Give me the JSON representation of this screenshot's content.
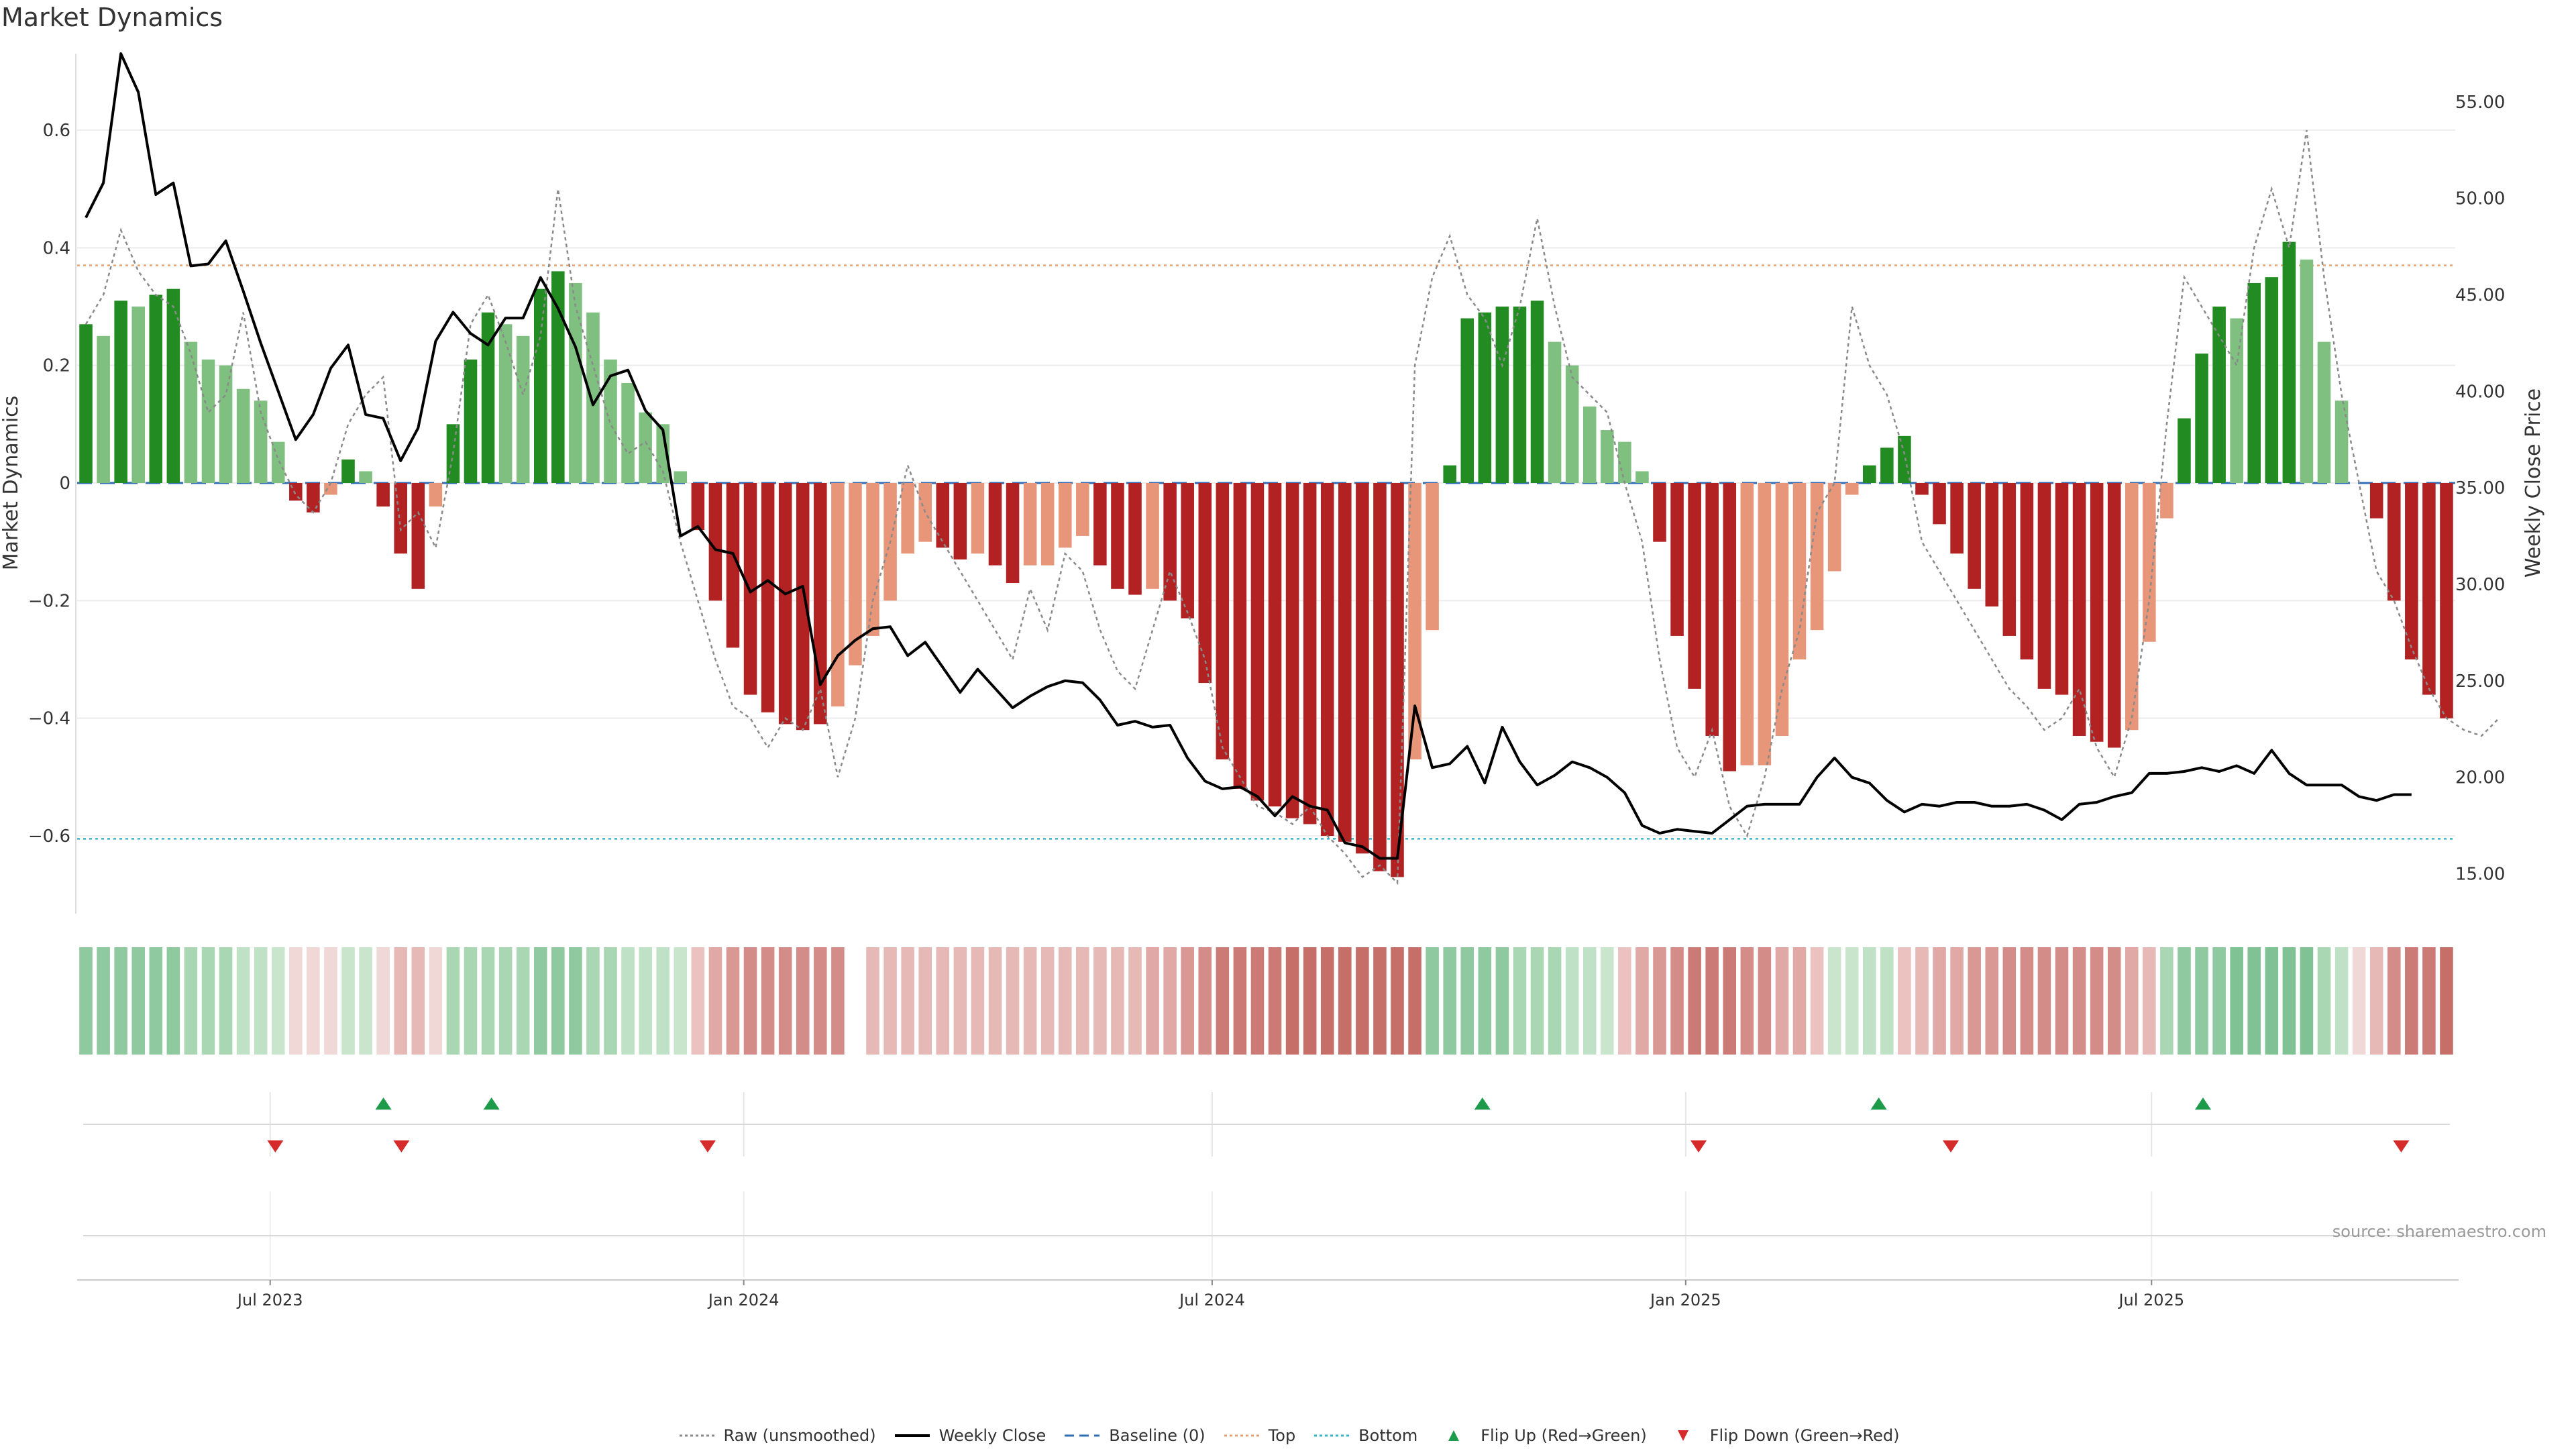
{
  "title": "Market Dynamics",
  "source": "source: sharemaestro.com",
  "legend": [
    {
      "label": "Raw (unsmoothed)",
      "icon": "dotted-line-icon",
      "color": "#8a8a8a"
    },
    {
      "label": "Weekly Close",
      "icon": "solid-line-icon",
      "color": "#000000"
    },
    {
      "label": "Baseline (0)",
      "icon": "dashed-line-icon",
      "color": "#2f6db5"
    },
    {
      "label": "Top",
      "icon": "dotted-line-icon",
      "color": "#e8a070"
    },
    {
      "label": "Bottom",
      "icon": "dotted-line-icon",
      "color": "#35b6c8"
    },
    {
      "label": "Flip Up (Red→Green)",
      "icon": "triangle-up-icon",
      "color": "#1e9b4a"
    },
    {
      "label": "Flip Down (Green→Red)",
      "icon": "triangle-down-icon",
      "color": "#d62b2b"
    }
  ],
  "colors": {
    "strong_up": "#228b22",
    "weak_up": "#7fbf7f",
    "strong_down": "#b22222",
    "weak_down": "#e8967a"
  },
  "chart_data": {
    "type": "bar",
    "title": "Market Dynamics",
    "ylabel": "Market Dynamics",
    "y2label": "Weekly Close Price",
    "ylim": [
      -0.73,
      0.73
    ],
    "y2lim": [
      13.0,
      57.5
    ],
    "yticks": [
      0.6,
      0.4,
      0.2,
      0,
      -0.2,
      -0.4,
      -0.6
    ],
    "ytick_labels": [
      "0.6",
      "0.4",
      "0.2",
      "0",
      "−0.2",
      "−0.4",
      "−0.6"
    ],
    "y2ticks": [
      55,
      50,
      45,
      40,
      35,
      30,
      25,
      20,
      15
    ],
    "y2tick_labels": [
      "55.00",
      "50.00",
      "45.00",
      "40.00",
      "35.00",
      "30.00",
      "25.00",
      "20.00",
      "15.00"
    ],
    "x_start": "2023-04-17",
    "x_end": "2025-10-27",
    "xticks": [
      {
        "label": "Jul 2023",
        "date": "2023-07-01"
      },
      {
        "label": "Jan 2024",
        "date": "2024-01-01"
      },
      {
        "label": "Jul 2024",
        "date": "2024-07-01"
      },
      {
        "label": "Jan 2025",
        "date": "2025-01-01"
      },
      {
        "label": "Jul 2025",
        "date": "2025-07-01"
      }
    ],
    "top_line": 0.37,
    "bottom_line": -0.605,
    "baseline": 0,
    "bars": {
      "values": [
        0.27,
        0.25,
        0.31,
        0.3,
        0.32,
        0.33,
        0.24,
        0.21,
        0.2,
        0.16,
        0.14,
        0.07,
        -0.03,
        -0.05,
        -0.02,
        0.04,
        0.02,
        -0.04,
        -0.12,
        -0.18,
        -0.04,
        0.1,
        0.21,
        0.29,
        0.27,
        0.25,
        0.33,
        0.36,
        0.34,
        0.29,
        0.21,
        0.17,
        0.12,
        0.1,
        0.02,
        -0.08,
        -0.2,
        -0.28,
        -0.36,
        -0.39,
        -0.41,
        -0.42,
        -0.41,
        -0.38,
        -0.31,
        -0.26,
        -0.2,
        -0.12,
        -0.1,
        -0.11,
        -0.13,
        -0.12,
        -0.14,
        -0.17,
        -0.14,
        -0.14,
        -0.11,
        -0.09,
        -0.14,
        -0.18,
        -0.19,
        -0.18,
        -0.2,
        -0.23,
        -0.34,
        -0.47,
        -0.52,
        -0.54,
        -0.55,
        -0.57,
        -0.58,
        -0.6,
        -0.61,
        -0.63,
        -0.66,
        -0.67,
        -0.47,
        -0.25,
        0.03,
        0.28,
        0.29,
        0.3,
        0.3,
        0.31,
        0.24,
        0.2,
        0.13,
        0.09,
        0.07,
        0.02,
        -0.1,
        -0.26,
        -0.35,
        -0.43,
        -0.49,
        -0.48,
        -0.48,
        -0.43,
        -0.3,
        -0.25,
        -0.15,
        -0.02,
        0.03,
        0.06,
        0.08,
        -0.02,
        -0.07,
        -0.12,
        -0.18,
        -0.21,
        -0.26,
        -0.3,
        -0.35,
        -0.36,
        -0.43,
        -0.44,
        -0.45,
        -0.42,
        -0.27,
        -0.06,
        0.11,
        0.22,
        0.3,
        0.28,
        0.34,
        0.35,
        0.41,
        0.38,
        0.24,
        0.14,
        null,
        -0.06,
        -0.2,
        -0.3,
        -0.36,
        -0.4
      ],
      "strength": [
        "s",
        "w",
        "s",
        "w",
        "s",
        "s",
        "w",
        "w",
        "w",
        "w",
        "w",
        "w",
        "s",
        "s",
        "w",
        "s",
        "w",
        "s",
        "s",
        "s",
        "w",
        "s",
        "s",
        "s",
        "w",
        "w",
        "s",
        "s",
        "w",
        "w",
        "w",
        "w",
        "w",
        "w",
        "w",
        "s",
        "s",
        "s",
        "s",
        "s",
        "s",
        "s",
        "s",
        "w",
        "w",
        "w",
        "w",
        "w",
        "w",
        "s",
        "s",
        "w",
        "s",
        "s",
        "w",
        "w",
        "w",
        "w",
        "s",
        "s",
        "s",
        "w",
        "s",
        "s",
        "s",
        "s",
        "s",
        "s",
        "s",
        "s",
        "s",
        "s",
        "s",
        "s",
        "s",
        "s",
        "w",
        "w",
        "s",
        "s",
        "s",
        "s",
        "s",
        "s",
        "w",
        "w",
        "w",
        "w",
        "w",
        "w",
        "s",
        "s",
        "s",
        "s",
        "s",
        "w",
        "w",
        "w",
        "w",
        "w",
        "w",
        "w",
        "s",
        "s",
        "s",
        "s",
        "s",
        "s",
        "s",
        "s",
        "s",
        "s",
        "s",
        "s",
        "s",
        "s",
        "s",
        "w",
        "w",
        "w",
        "s",
        "s",
        "s",
        "w",
        "s",
        "s",
        "s",
        "w",
        "w",
        "w",
        "",
        "s",
        "s",
        "s",
        "s",
        "s"
      ]
    },
    "raw": [
      0.27,
      0.32,
      0.43,
      0.36,
      0.32,
      0.3,
      0.22,
      0.12,
      0.15,
      0.29,
      0.12,
      0.04,
      -0.02,
      -0.05,
      0.0,
      0.1,
      0.15,
      0.18,
      -0.08,
      -0.05,
      -0.11,
      0.05,
      0.27,
      0.32,
      0.24,
      0.15,
      0.25,
      0.5,
      0.3,
      0.2,
      0.1,
      0.05,
      0.07,
      0.02,
      -0.1,
      -0.2,
      -0.3,
      -0.38,
      -0.4,
      -0.45,
      -0.4,
      -0.42,
      -0.35,
      -0.5,
      -0.4,
      -0.2,
      -0.1,
      0.03,
      -0.05,
      -0.1,
      -0.15,
      -0.2,
      -0.25,
      -0.3,
      -0.18,
      -0.25,
      -0.12,
      -0.15,
      -0.25,
      -0.32,
      -0.35,
      -0.25,
      -0.15,
      -0.22,
      -0.3,
      -0.45,
      -0.5,
      -0.55,
      -0.56,
      -0.58,
      -0.55,
      -0.6,
      -0.63,
      -0.67,
      -0.65,
      -0.68,
      0.2,
      0.35,
      0.42,
      0.32,
      0.28,
      0.2,
      0.3,
      0.45,
      0.3,
      0.18,
      0.15,
      0.12,
      0.0,
      -0.1,
      -0.3,
      -0.45,
      -0.5,
      -0.42,
      -0.55,
      -0.6,
      -0.5,
      -0.35,
      -0.25,
      -0.05,
      0.0,
      0.3,
      0.2,
      0.15,
      0.05,
      -0.1,
      -0.15,
      -0.2,
      -0.25,
      -0.3,
      -0.35,
      -0.38,
      -0.42,
      -0.4,
      -0.35,
      -0.45,
      -0.5,
      -0.4,
      -0.2,
      0.1,
      0.35,
      0.3,
      0.25,
      0.2,
      0.4,
      0.5,
      0.4,
      0.6,
      0.35,
      0.15,
      0.0,
      -0.15,
      -0.2,
      -0.28,
      -0.35,
      -0.4,
      -0.42,
      -0.43,
      -0.4
    ],
    "close": [
      49,
      50.8,
      57.5,
      55.5,
      50.2,
      50.8,
      46.5,
      46.6,
      47.8,
      45.2,
      42.5,
      40.0,
      37.5,
      38.8,
      41.2,
      42.4,
      38.8,
      38.6,
      36.4,
      38.1,
      42.6,
      44.1,
      43.0,
      42.4,
      43.8,
      43.8,
      45.9,
      44.3,
      42.3,
      39.3,
      40.8,
      41.1,
      39.0,
      38.0,
      32.5,
      33.0,
      31.8,
      31.6,
      29.6,
      30.2,
      29.5,
      29.9,
      24.8,
      26.3,
      27.1,
      27.7,
      27.8,
      26.3,
      27.0,
      25.7,
      24.4,
      25.6,
      24.6,
      23.6,
      24.2,
      24.7,
      25.0,
      24.9,
      24.0,
      22.7,
      22.9,
      22.6,
      22.7,
      21.0,
      19.8,
      19.4,
      19.5,
      19.0,
      18.0,
      19.0,
      18.5,
      18.3,
      16.6,
      16.4,
      15.8,
      15.8,
      23.7,
      20.5,
      20.7,
      21.6,
      19.7,
      22.6,
      20.8,
      19.6,
      20.1,
      20.8,
      20.5,
      20.0,
      19.2,
      17.5,
      17.1,
      17.3,
      17.2,
      17.1,
      17.8,
      18.5,
      18.6,
      18.6,
      18.6,
      20.0,
      21.0,
      20.0,
      19.7,
      18.8,
      18.2,
      18.6,
      18.5,
      18.7,
      18.7,
      18.5,
      18.5,
      18.6,
      18.3,
      17.8,
      18.6,
      18.7,
      19.0,
      19.2,
      20.2,
      20.2,
      20.3,
      20.5,
      20.3,
      20.6,
      20.2,
      21.4,
      20.2,
      19.6,
      19.6,
      19.6,
      19.0,
      18.8,
      19.1,
      19.1
    ],
    "heat_colors": [
      "#8ec99f",
      "#8ec99f",
      "#8ec99f",
      "#8ec99f",
      "#8ec99f",
      "#8ec99f",
      "#a9d6b3",
      "#a9d6b3",
      "#a9d6b3",
      "#bfe1c5",
      "#bfe1c5",
      "#c9e6cd",
      "#f0d8d6",
      "#f0d8d6",
      "#f0d8d6",
      "#c9e6cd",
      "#c9e6cd",
      "#f0d8d6",
      "#e6b8b6",
      "#e6b8b6",
      "#f0d8d6",
      "#a9d6b3",
      "#a9d6b3",
      "#a9d6b3",
      "#a9d6b3",
      "#a9d6b3",
      "#8ec99f",
      "#8ec99f",
      "#8ec99f",
      "#a9d6b3",
      "#a9d6b3",
      "#bfe1c5",
      "#bfe1c5",
      "#bfe1c5",
      "#c9e6cd",
      "#ebc2c0",
      "#e0a9a6",
      "#da9895",
      "#d48c88",
      "#d48c88",
      "#d48c88",
      "#d48c88",
      "#d48c88",
      "#d48c88",
      "#ffffff",
      "#e6b8b6",
      "#e6b8b6",
      "#e6b8b6",
      "#e6b8b6",
      "#e6b8b6",
      "#e6b8b6",
      "#e6b8b6",
      "#e6b8b6",
      "#e6b8b6",
      "#e6b8b6",
      "#e6b8b6",
      "#e6b8b6",
      "#e6b8b6",
      "#e6b8b6",
      "#e6b8b6",
      "#e6b8b6",
      "#e0a9a6",
      "#e0a9a6",
      "#da9895",
      "#d48c88",
      "#cc7a75",
      "#cc7a75",
      "#cc7a75",
      "#cc7a75",
      "#c66e68",
      "#c66e68",
      "#c66e68",
      "#c66e68",
      "#c66e68",
      "#c66e68",
      "#c66e68",
      "#c66e68",
      "#8ec99f",
      "#8ec99f",
      "#8ec99f",
      "#8ec99f",
      "#8ec99f",
      "#a9d6b3",
      "#a9d6b3",
      "#a9d6b3",
      "#bfe1c5",
      "#bfe1c5",
      "#c9e6cd",
      "#ebc2c0",
      "#e0a9a6",
      "#da9895",
      "#d48c88",
      "#cc7a75",
      "#cc7a75",
      "#cc7a75",
      "#d48c88",
      "#d48c88",
      "#e0a9a6",
      "#e0a9a6",
      "#ebc2c0",
      "#c9e6cd",
      "#c9e6cd",
      "#bfe1c5",
      "#bfe1c5",
      "#ebc2c0",
      "#e6b8b6",
      "#e0a9a6",
      "#e0a9a6",
      "#da9895",
      "#da9895",
      "#d48c88",
      "#d48c88",
      "#d48c88",
      "#d48c88",
      "#d48c88",
      "#d48c88",
      "#d48c88",
      "#e0a9a6",
      "#e6b8b6",
      "#a9d6b3",
      "#8ec99f",
      "#8ec99f",
      "#8ec99f",
      "#80c293",
      "#80c293",
      "#80c293",
      "#80c293",
      "#80c293",
      "#a9d6b3",
      "#bfe1c5",
      "#f0d8d6",
      "#e6b8b6",
      "#d48c88",
      "#cc7a75",
      "#cc7a75",
      "#c66e68"
    ],
    "flip_up": [
      "2023-08-14",
      "2023-09-25",
      "2024-10-14",
      "2025-03-17",
      "2025-07-21"
    ],
    "flip_down": [
      "2023-07-03",
      "2023-08-21",
      "2023-12-18",
      "2025-01-06",
      "2025-04-14",
      "2025-10-06"
    ]
  }
}
